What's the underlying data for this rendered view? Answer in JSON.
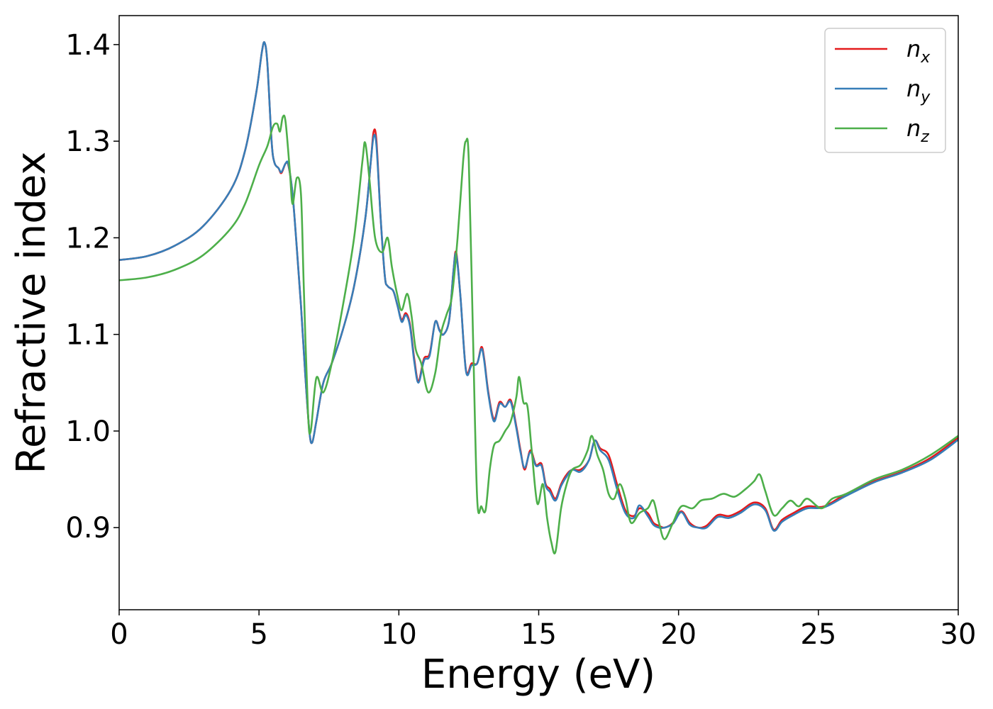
{
  "chart_data": {
    "type": "line",
    "xlabel": "Energy (eV)",
    "ylabel": "Refractive index",
    "xlim": [
      0,
      30
    ],
    "ylim": [
      0.815,
      1.43
    ],
    "xticks": [
      0,
      5,
      10,
      15,
      20,
      25,
      30
    ],
    "yticks": [
      0.9,
      1.0,
      1.1,
      1.2,
      1.3,
      1.4
    ],
    "grid": false,
    "legend_position": "top-right",
    "series": [
      {
        "name": "n",
        "subscript": "x",
        "color": "#e41a1c",
        "points": [
          [
            0,
            1.177
          ],
          [
            1,
            1.181
          ],
          [
            2,
            1.192
          ],
          [
            3,
            1.212
          ],
          [
            4,
            1.25
          ],
          [
            4.5,
            1.29
          ],
          [
            4.9,
            1.35
          ],
          [
            5.1,
            1.392
          ],
          [
            5.2,
            1.402
          ],
          [
            5.3,
            1.38
          ],
          [
            5.45,
            1.3
          ],
          [
            5.55,
            1.278
          ],
          [
            5.7,
            1.272
          ],
          [
            5.8,
            1.267
          ],
          [
            5.95,
            1.277
          ],
          [
            6.05,
            1.275
          ],
          [
            6.2,
            1.245
          ],
          [
            6.35,
            1.19
          ],
          [
            6.5,
            1.13
          ],
          [
            6.65,
            1.06
          ],
          [
            6.8,
            1.0
          ],
          [
            6.9,
            0.988
          ],
          [
            7.05,
            1.01
          ],
          [
            7.3,
            1.05
          ],
          [
            7.6,
            1.07
          ],
          [
            8,
            1.105
          ],
          [
            8.4,
            1.15
          ],
          [
            8.8,
            1.22
          ],
          [
            9.0,
            1.28
          ],
          [
            9.1,
            1.31
          ],
          [
            9.2,
            1.3
          ],
          [
            9.35,
            1.22
          ],
          [
            9.5,
            1.16
          ],
          [
            9.6,
            1.15
          ],
          [
            9.8,
            1.145
          ],
          [
            9.95,
            1.13
          ],
          [
            10.1,
            1.115
          ],
          [
            10.25,
            1.122
          ],
          [
            10.4,
            1.11
          ],
          [
            10.55,
            1.075
          ],
          [
            10.7,
            1.052
          ],
          [
            10.9,
            1.075
          ],
          [
            11.1,
            1.08
          ],
          [
            11.3,
            1.113
          ],
          [
            11.45,
            1.105
          ],
          [
            11.6,
            1.1
          ],
          [
            11.8,
            1.115
          ],
          [
            11.95,
            1.165
          ],
          [
            12.05,
            1.185
          ],
          [
            12.2,
            1.14
          ],
          [
            12.4,
            1.063
          ],
          [
            12.6,
            1.07
          ],
          [
            12.8,
            1.07
          ],
          [
            12.95,
            1.087
          ],
          [
            13.05,
            1.075
          ],
          [
            13.2,
            1.04
          ],
          [
            13.4,
            1.012
          ],
          [
            13.6,
            1.03
          ],
          [
            13.8,
            1.025
          ],
          [
            14.0,
            1.032
          ],
          [
            14.2,
            1.005
          ],
          [
            14.35,
            0.98
          ],
          [
            14.5,
            0.96
          ],
          [
            14.7,
            0.98
          ],
          [
            14.9,
            0.965
          ],
          [
            15.1,
            0.966
          ],
          [
            15.25,
            0.945
          ],
          [
            15.4,
            0.94
          ],
          [
            15.6,
            0.93
          ],
          [
            15.8,
            0.945
          ],
          [
            16.0,
            0.955
          ],
          [
            16.2,
            0.96
          ],
          [
            16.5,
            0.96
          ],
          [
            16.8,
            0.97
          ],
          [
            17.0,
            0.99
          ],
          [
            17.2,
            0.982
          ],
          [
            17.5,
            0.975
          ],
          [
            17.8,
            0.945
          ],
          [
            18.1,
            0.918
          ],
          [
            18.4,
            0.912
          ],
          [
            18.6,
            0.92
          ],
          [
            18.9,
            0.915
          ],
          [
            19.1,
            0.905
          ],
          [
            19.3,
            0.902
          ],
          [
            19.5,
            0.9
          ],
          [
            19.8,
            0.905
          ],
          [
            20.1,
            0.917
          ],
          [
            20.4,
            0.905
          ],
          [
            20.7,
            0.9
          ],
          [
            21.0,
            0.902
          ],
          [
            21.4,
            0.913
          ],
          [
            21.8,
            0.912
          ],
          [
            22.2,
            0.917
          ],
          [
            22.7,
            0.926
          ],
          [
            23.1,
            0.92
          ],
          [
            23.4,
            0.898
          ],
          [
            23.7,
            0.908
          ],
          [
            24.1,
            0.915
          ],
          [
            24.6,
            0.922
          ],
          [
            25.2,
            0.922
          ],
          [
            26,
            0.935
          ],
          [
            27,
            0.948
          ],
          [
            28,
            0.958
          ],
          [
            29,
            0.972
          ],
          [
            30,
            0.993
          ]
        ]
      },
      {
        "name": "n",
        "subscript": "y",
        "color": "#377eb8",
        "points": [
          [
            0,
            1.177
          ],
          [
            1,
            1.181
          ],
          [
            2,
            1.192
          ],
          [
            3,
            1.212
          ],
          [
            4,
            1.25
          ],
          [
            4.5,
            1.29
          ],
          [
            4.9,
            1.35
          ],
          [
            5.1,
            1.392
          ],
          [
            5.2,
            1.402
          ],
          [
            5.3,
            1.38
          ],
          [
            5.45,
            1.3
          ],
          [
            5.55,
            1.278
          ],
          [
            5.7,
            1.272
          ],
          [
            5.8,
            1.268
          ],
          [
            5.95,
            1.277
          ],
          [
            6.05,
            1.276
          ],
          [
            6.2,
            1.245
          ],
          [
            6.35,
            1.19
          ],
          [
            6.5,
            1.13
          ],
          [
            6.65,
            1.06
          ],
          [
            6.8,
            1.0
          ],
          [
            6.9,
            0.988
          ],
          [
            7.05,
            1.01
          ],
          [
            7.3,
            1.05
          ],
          [
            7.6,
            1.07
          ],
          [
            8,
            1.105
          ],
          [
            8.4,
            1.15
          ],
          [
            8.8,
            1.22
          ],
          [
            9.0,
            1.28
          ],
          [
            9.1,
            1.305
          ],
          [
            9.2,
            1.295
          ],
          [
            9.35,
            1.22
          ],
          [
            9.5,
            1.16
          ],
          [
            9.6,
            1.15
          ],
          [
            9.8,
            1.145
          ],
          [
            9.95,
            1.13
          ],
          [
            10.1,
            1.113
          ],
          [
            10.25,
            1.12
          ],
          [
            10.4,
            1.108
          ],
          [
            10.55,
            1.072
          ],
          [
            10.7,
            1.05
          ],
          [
            10.9,
            1.073
          ],
          [
            11.1,
            1.078
          ],
          [
            11.3,
            1.113
          ],
          [
            11.45,
            1.104
          ],
          [
            11.6,
            1.1
          ],
          [
            11.8,
            1.115
          ],
          [
            11.95,
            1.165
          ],
          [
            12.05,
            1.183
          ],
          [
            12.2,
            1.14
          ],
          [
            12.4,
            1.062
          ],
          [
            12.6,
            1.068
          ],
          [
            12.8,
            1.07
          ],
          [
            12.95,
            1.085
          ],
          [
            13.05,
            1.073
          ],
          [
            13.2,
            1.038
          ],
          [
            13.4,
            1.01
          ],
          [
            13.6,
            1.028
          ],
          [
            13.8,
            1.025
          ],
          [
            14.0,
            1.03
          ],
          [
            14.2,
            1.003
          ],
          [
            14.35,
            0.978
          ],
          [
            14.5,
            0.962
          ],
          [
            14.7,
            0.978
          ],
          [
            14.9,
            0.964
          ],
          [
            15.1,
            0.964
          ],
          [
            15.25,
            0.943
          ],
          [
            15.4,
            0.937
          ],
          [
            15.6,
            0.928
          ],
          [
            15.8,
            0.943
          ],
          [
            16.0,
            0.953
          ],
          [
            16.2,
            0.96
          ],
          [
            16.5,
            0.958
          ],
          [
            16.8,
            0.97
          ],
          [
            17.0,
            0.99
          ],
          [
            17.2,
            0.98
          ],
          [
            17.5,
            0.97
          ],
          [
            17.8,
            0.94
          ],
          [
            18.1,
            0.915
          ],
          [
            18.4,
            0.91
          ],
          [
            18.6,
            0.923
          ],
          [
            18.9,
            0.912
          ],
          [
            19.1,
            0.903
          ],
          [
            19.3,
            0.9
          ],
          [
            19.5,
            0.9
          ],
          [
            19.8,
            0.904
          ],
          [
            20.1,
            0.916
          ],
          [
            20.4,
            0.903
          ],
          [
            20.7,
            0.9
          ],
          [
            21.0,
            0.9
          ],
          [
            21.4,
            0.911
          ],
          [
            21.8,
            0.91
          ],
          [
            22.2,
            0.915
          ],
          [
            22.7,
            0.924
          ],
          [
            23.1,
            0.918
          ],
          [
            23.4,
            0.897
          ],
          [
            23.7,
            0.906
          ],
          [
            24.1,
            0.913
          ],
          [
            24.6,
            0.92
          ],
          [
            25.2,
            0.921
          ],
          [
            26,
            0.933
          ],
          [
            27,
            0.947
          ],
          [
            28,
            0.957
          ],
          [
            29,
            0.97
          ],
          [
            30,
            0.991
          ]
        ]
      },
      {
        "name": "n",
        "subscript": "z",
        "color": "#4daf4a",
        "points": [
          [
            0,
            1.156
          ],
          [
            1,
            1.159
          ],
          [
            2,
            1.167
          ],
          [
            3,
            1.182
          ],
          [
            4,
            1.21
          ],
          [
            4.5,
            1.235
          ],
          [
            5,
            1.275
          ],
          [
            5.3,
            1.295
          ],
          [
            5.5,
            1.315
          ],
          [
            5.65,
            1.318
          ],
          [
            5.75,
            1.31
          ],
          [
            5.85,
            1.325
          ],
          [
            5.95,
            1.32
          ],
          [
            6.1,
            1.27
          ],
          [
            6.2,
            1.235
          ],
          [
            6.35,
            1.262
          ],
          [
            6.5,
            1.245
          ],
          [
            6.6,
            1.15
          ],
          [
            6.75,
            1.02
          ],
          [
            6.85,
            1.0
          ],
          [
            7.05,
            1.055
          ],
          [
            7.3,
            1.04
          ],
          [
            7.6,
            1.07
          ],
          [
            8,
            1.13
          ],
          [
            8.4,
            1.2
          ],
          [
            8.7,
            1.28
          ],
          [
            8.8,
            1.298
          ],
          [
            8.95,
            1.26
          ],
          [
            9.15,
            1.2
          ],
          [
            9.4,
            1.185
          ],
          [
            9.6,
            1.2
          ],
          [
            9.75,
            1.17
          ],
          [
            9.95,
            1.14
          ],
          [
            10.1,
            1.125
          ],
          [
            10.3,
            1.142
          ],
          [
            10.45,
            1.12
          ],
          [
            10.6,
            1.085
          ],
          [
            10.8,
            1.07
          ],
          [
            11.05,
            1.04
          ],
          [
            11.3,
            1.06
          ],
          [
            11.5,
            1.1
          ],
          [
            11.7,
            1.12
          ],
          [
            11.9,
            1.14
          ],
          [
            12.1,
            1.2
          ],
          [
            12.3,
            1.28
          ],
          [
            12.4,
            1.3
          ],
          [
            12.5,
            1.28
          ],
          [
            12.65,
            1.1
          ],
          [
            12.8,
            0.93
          ],
          [
            12.95,
            0.922
          ],
          [
            13.1,
            0.918
          ],
          [
            13.25,
            0.96
          ],
          [
            13.4,
            0.985
          ],
          [
            13.6,
            0.99
          ],
          [
            13.8,
            1.0
          ],
          [
            14.0,
            1.01
          ],
          [
            14.2,
            1.035
          ],
          [
            14.3,
            1.056
          ],
          [
            14.45,
            1.03
          ],
          [
            14.6,
            1.025
          ],
          [
            14.75,
            0.98
          ],
          [
            14.95,
            0.925
          ],
          [
            15.15,
            0.945
          ],
          [
            15.3,
            0.91
          ],
          [
            15.45,
            0.885
          ],
          [
            15.6,
            0.875
          ],
          [
            15.8,
            0.92
          ],
          [
            16.0,
            0.945
          ],
          [
            16.2,
            0.96
          ],
          [
            16.5,
            0.965
          ],
          [
            16.75,
            0.98
          ],
          [
            16.9,
            0.995
          ],
          [
            17.1,
            0.975
          ],
          [
            17.3,
            0.96
          ],
          [
            17.5,
            0.935
          ],
          [
            17.7,
            0.93
          ],
          [
            17.9,
            0.945
          ],
          [
            18.1,
            0.93
          ],
          [
            18.3,
            0.905
          ],
          [
            18.6,
            0.915
          ],
          [
            18.9,
            0.92
          ],
          [
            19.1,
            0.928
          ],
          [
            19.3,
            0.905
          ],
          [
            19.5,
            0.888
          ],
          [
            19.8,
            0.905
          ],
          [
            20.1,
            0.922
          ],
          [
            20.5,
            0.92
          ],
          [
            20.8,
            0.928
          ],
          [
            21.2,
            0.93
          ],
          [
            21.6,
            0.935
          ],
          [
            22.0,
            0.932
          ],
          [
            22.4,
            0.94
          ],
          [
            22.7,
            0.948
          ],
          [
            22.9,
            0.955
          ],
          [
            23.1,
            0.938
          ],
          [
            23.4,
            0.913
          ],
          [
            23.7,
            0.92
          ],
          [
            24.0,
            0.928
          ],
          [
            24.3,
            0.922
          ],
          [
            24.6,
            0.93
          ],
          [
            25.1,
            0.92
          ],
          [
            25.5,
            0.93
          ],
          [
            26,
            0.935
          ],
          [
            27,
            0.95
          ],
          [
            28,
            0.96
          ],
          [
            29,
            0.975
          ],
          [
            30,
            0.995
          ]
        ]
      }
    ]
  }
}
